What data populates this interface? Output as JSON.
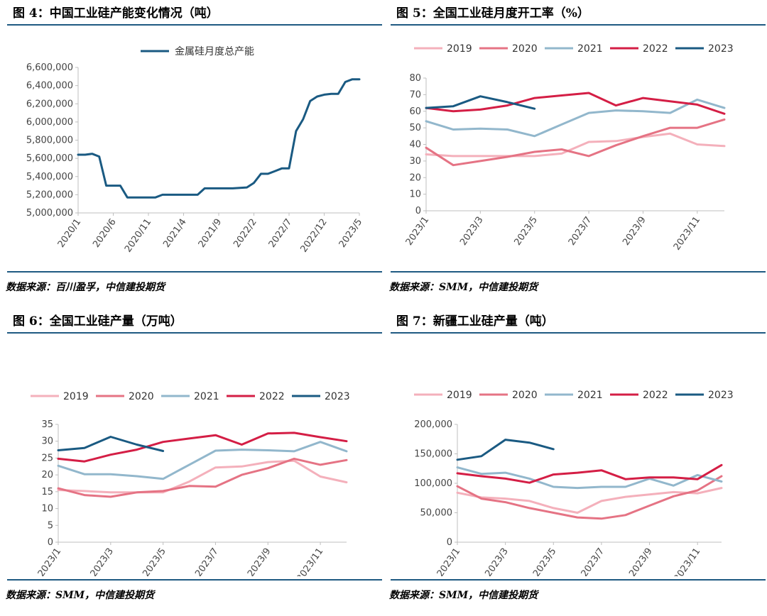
{
  "panels": [
    {
      "title": "图 4：中国工业硅产能变化情况（吨）",
      "source": "数据来源：百川盈孚，中信建投期货"
    },
    {
      "title": "图 5：全国工业硅月度开工率（%）",
      "source": "数据来源：SMM，中信建投期货"
    },
    {
      "title": "图 6：全国工业硅产量（万吨）",
      "source": "数据来源：SMM，中信建投期货"
    },
    {
      "title": "图 7：新疆工业硅产量（吨）",
      "source": "数据来源：SMM，中信建投期货"
    }
  ],
  "chart_data": [
    {
      "type": "line",
      "title": "",
      "legend_position": "top",
      "ylim": [
        5000000,
        6600000
      ],
      "yticks": [
        5000000,
        5200000,
        5400000,
        5600000,
        5800000,
        6000000,
        6200000,
        6400000,
        6600000
      ],
      "ytick_labels": [
        "5,000,000",
        "5,200,000",
        "5,400,000",
        "5,600,000",
        "5,800,000",
        "6,000,000",
        "6,200,000",
        "6,400,000",
        "6,600,000"
      ],
      "x": [
        "2020/1",
        "2020/2",
        "2020/3",
        "2020/4",
        "2020/5",
        "2020/6",
        "2020/7",
        "2020/8",
        "2020/9",
        "2020/10",
        "2020/11",
        "2020/12",
        "2021/1",
        "2021/2",
        "2021/3",
        "2021/4",
        "2021/5",
        "2021/6",
        "2021/7",
        "2021/8",
        "2021/9",
        "2021/10",
        "2021/11",
        "2021/12",
        "2022/1",
        "2022/2",
        "2022/3",
        "2022/4",
        "2022/5",
        "2022/6",
        "2022/7",
        "2022/8",
        "2022/9",
        "2022/10",
        "2022/11",
        "2022/12",
        "2023/1",
        "2023/2",
        "2023/3",
        "2023/4",
        "2023/5"
      ],
      "xtick_labels": [
        "2020/1",
        "2020/6",
        "2020/11",
        "2021/4",
        "2021/9",
        "2022/2",
        "2022/7",
        "2022/12",
        "2023/5"
      ],
      "series": [
        {
          "name": "金属硅月度总产能",
          "color": "#1a5a82",
          "values": [
            5640000,
            5640000,
            5650000,
            5620000,
            5300000,
            5300000,
            5300000,
            5170000,
            5170000,
            5170000,
            5170000,
            5170000,
            5200000,
            5200000,
            5200000,
            5200000,
            5200000,
            5200000,
            5270000,
            5270000,
            5270000,
            5270000,
            5270000,
            5275000,
            5280000,
            5330000,
            5430000,
            5430000,
            5460000,
            5490000,
            5490000,
            5900000,
            6030000,
            6230000,
            6280000,
            6300000,
            6310000,
            6310000,
            6440000,
            6470000,
            6470000
          ]
        }
      ]
    },
    {
      "type": "line",
      "title": "",
      "legend_position": "top",
      "ylim": [
        0,
        80
      ],
      "yticks": [
        0,
        10,
        20,
        30,
        40,
        50,
        60,
        70,
        80
      ],
      "ytick_labels": [
        "0",
        "10",
        "20",
        "30",
        "40",
        "50",
        "60",
        "70",
        "80"
      ],
      "x": [
        "2023/1",
        "2023/2",
        "2023/3",
        "2023/4",
        "2023/5",
        "2023/6",
        "2023/7",
        "2023/8",
        "2023/9",
        "2023/10",
        "2023/11",
        "2023/12"
      ],
      "xtick_labels": [
        "2023/1",
        "2023/3",
        "2023/5",
        "2023/7",
        "2023/9",
        "2023/11"
      ],
      "series": [
        {
          "name": "2019",
          "color": "#f4b0bb",
          "values": [
            34,
            33,
            33,
            33,
            33,
            34.5,
            41.5,
            42,
            44.5,
            46.5,
            40,
            39
          ]
        },
        {
          "name": "2020",
          "color": "#e57384",
          "values": [
            38,
            27.5,
            30,
            32.5,
            35.5,
            37,
            33,
            39.5,
            45,
            50,
            50,
            55
          ]
        },
        {
          "name": "2021",
          "color": "#92b7cc",
          "values": [
            54,
            49,
            49.5,
            49,
            45,
            52,
            59,
            60.5,
            60,
            59,
            67,
            62
          ]
        },
        {
          "name": "2022",
          "color": "#d41e45",
          "values": [
            62,
            60,
            61,
            63.5,
            68,
            69.5,
            71,
            63.5,
            68,
            66,
            64,
            58.5
          ]
        },
        {
          "name": "2023",
          "color": "#1a5a82",
          "values": [
            62,
            63,
            69,
            65.5,
            61.5,
            null,
            null,
            null,
            null,
            null,
            null,
            null
          ]
        }
      ]
    },
    {
      "type": "line",
      "title": "",
      "legend_position": "top",
      "ylim": [
        0,
        35
      ],
      "yticks": [
        0,
        5,
        10,
        15,
        20,
        25,
        30,
        35
      ],
      "ytick_labels": [
        "0",
        "5",
        "10",
        "15",
        "20",
        "25",
        "30",
        "35"
      ],
      "x": [
        "2023/1",
        "2023/2",
        "2023/3",
        "2023/4",
        "2023/5",
        "2023/6",
        "2023/7",
        "2023/8",
        "2023/9",
        "2023/10",
        "2023/11",
        "2023/12"
      ],
      "xtick_labels": [
        "2023/1",
        "2023/3",
        "2023/5",
        "2023/7",
        "2023/9",
        "2023/11"
      ],
      "series": [
        {
          "name": "2019",
          "color": "#f4b0bb",
          "values": [
            15.5,
            15.2,
            14.8,
            14.8,
            14.8,
            18,
            22.2,
            22.5,
            23.8,
            24.2,
            19.5,
            17.8
          ]
        },
        {
          "name": "2020",
          "color": "#e57384",
          "values": [
            16,
            14,
            13.5,
            14.8,
            15.2,
            16.7,
            16.5,
            20,
            22,
            24.8,
            23,
            24.4
          ]
        },
        {
          "name": "2021",
          "color": "#92b7cc",
          "values": [
            22.7,
            20.2,
            20.2,
            19.6,
            18.8,
            23,
            27.2,
            27.5,
            27.3,
            27,
            29.8,
            27
          ]
        },
        {
          "name": "2022",
          "color": "#d41e45",
          "values": [
            24.8,
            24,
            26,
            27.5,
            29.8,
            30.8,
            31.8,
            29,
            32.3,
            32.5,
            31.2,
            30
          ]
        },
        {
          "name": "2023",
          "color": "#1a5a82",
          "values": [
            27.3,
            28,
            31.3,
            29,
            27.1,
            null,
            null,
            null,
            null,
            null,
            null,
            null
          ]
        }
      ]
    },
    {
      "type": "line",
      "title": "",
      "legend_position": "top",
      "ylim": [
        0,
        200000
      ],
      "yticks": [
        0,
        50000,
        100000,
        150000,
        200000
      ],
      "ytick_labels": [
        "0",
        "50,000",
        "100,000",
        "150,000",
        "200,000"
      ],
      "x": [
        "2023/1",
        "2023/2",
        "2023/3",
        "2023/4",
        "2023/5",
        "2023/6",
        "2023/7",
        "2023/8",
        "2023/9",
        "2023/10",
        "2023/11",
        "2023/12"
      ],
      "xtick_labels": [
        "2023/1",
        "2023/3",
        "2023/5",
        "2023/7",
        "2023/9",
        "2023/11"
      ],
      "series": [
        {
          "name": "2019",
          "color": "#f4b0bb",
          "values": [
            84000,
            76000,
            74000,
            70000,
            58000,
            50000,
            70000,
            77000,
            81000,
            85000,
            83000,
            92000
          ]
        },
        {
          "name": "2020",
          "color": "#e57384",
          "values": [
            95000,
            74000,
            68000,
            58000,
            50000,
            42000,
            40000,
            46000,
            62000,
            78000,
            88000,
            112000
          ]
        },
        {
          "name": "2021",
          "color": "#92b7cc",
          "values": [
            127000,
            116000,
            118000,
            108000,
            94000,
            92000,
            94000,
            94000,
            108000,
            96000,
            114000,
            103000
          ]
        },
        {
          "name": "2022",
          "color": "#d41e45",
          "values": [
            117000,
            112000,
            108000,
            101000,
            115000,
            118000,
            122000,
            107000,
            110000,
            110000,
            107000,
            131000
          ]
        },
        {
          "name": "2023",
          "color": "#1a5a82",
          "values": [
            140000,
            146000,
            174000,
            169000,
            158000,
            null,
            null,
            null,
            null,
            null,
            null,
            null
          ]
        }
      ]
    }
  ]
}
